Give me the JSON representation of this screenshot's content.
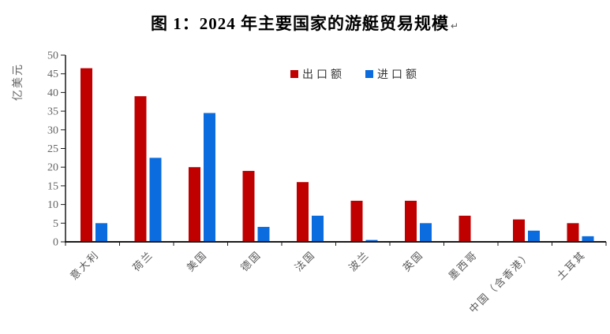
{
  "page": {
    "paragraph_mark": "↵"
  },
  "chart_data": {
    "type": "bar",
    "title": "图 1：2024 年主要国家的游艇贸易规模",
    "xlabel": "",
    "ylabel": "亿美元",
    "categories": [
      "意大利",
      "荷兰",
      "美国",
      "德国",
      "法国",
      "波兰",
      "英国",
      "墨西哥",
      "中国（含香港）",
      "土耳其"
    ],
    "series": [
      {
        "name": "出口额",
        "color": "#C00000",
        "values": [
          46.5,
          39,
          20,
          19,
          16,
          11,
          11,
          7,
          6,
          5
        ]
      },
      {
        "name": "进口额",
        "color": "#0A6CDE",
        "values": [
          5,
          22.5,
          34.5,
          4,
          7,
          0.5,
          5,
          0,
          3,
          1.5
        ]
      }
    ],
    "ylim": [
      0,
      50
    ],
    "ytick_step": 5,
    "yticks": [
      0,
      5,
      10,
      15,
      20,
      25,
      30,
      35,
      40,
      45,
      50
    ],
    "grid": false,
    "legend_position": "top-center-inside",
    "axis_color": "#1a1a1a",
    "tick_label_color": "#666666",
    "category_label_color": "#595959"
  }
}
